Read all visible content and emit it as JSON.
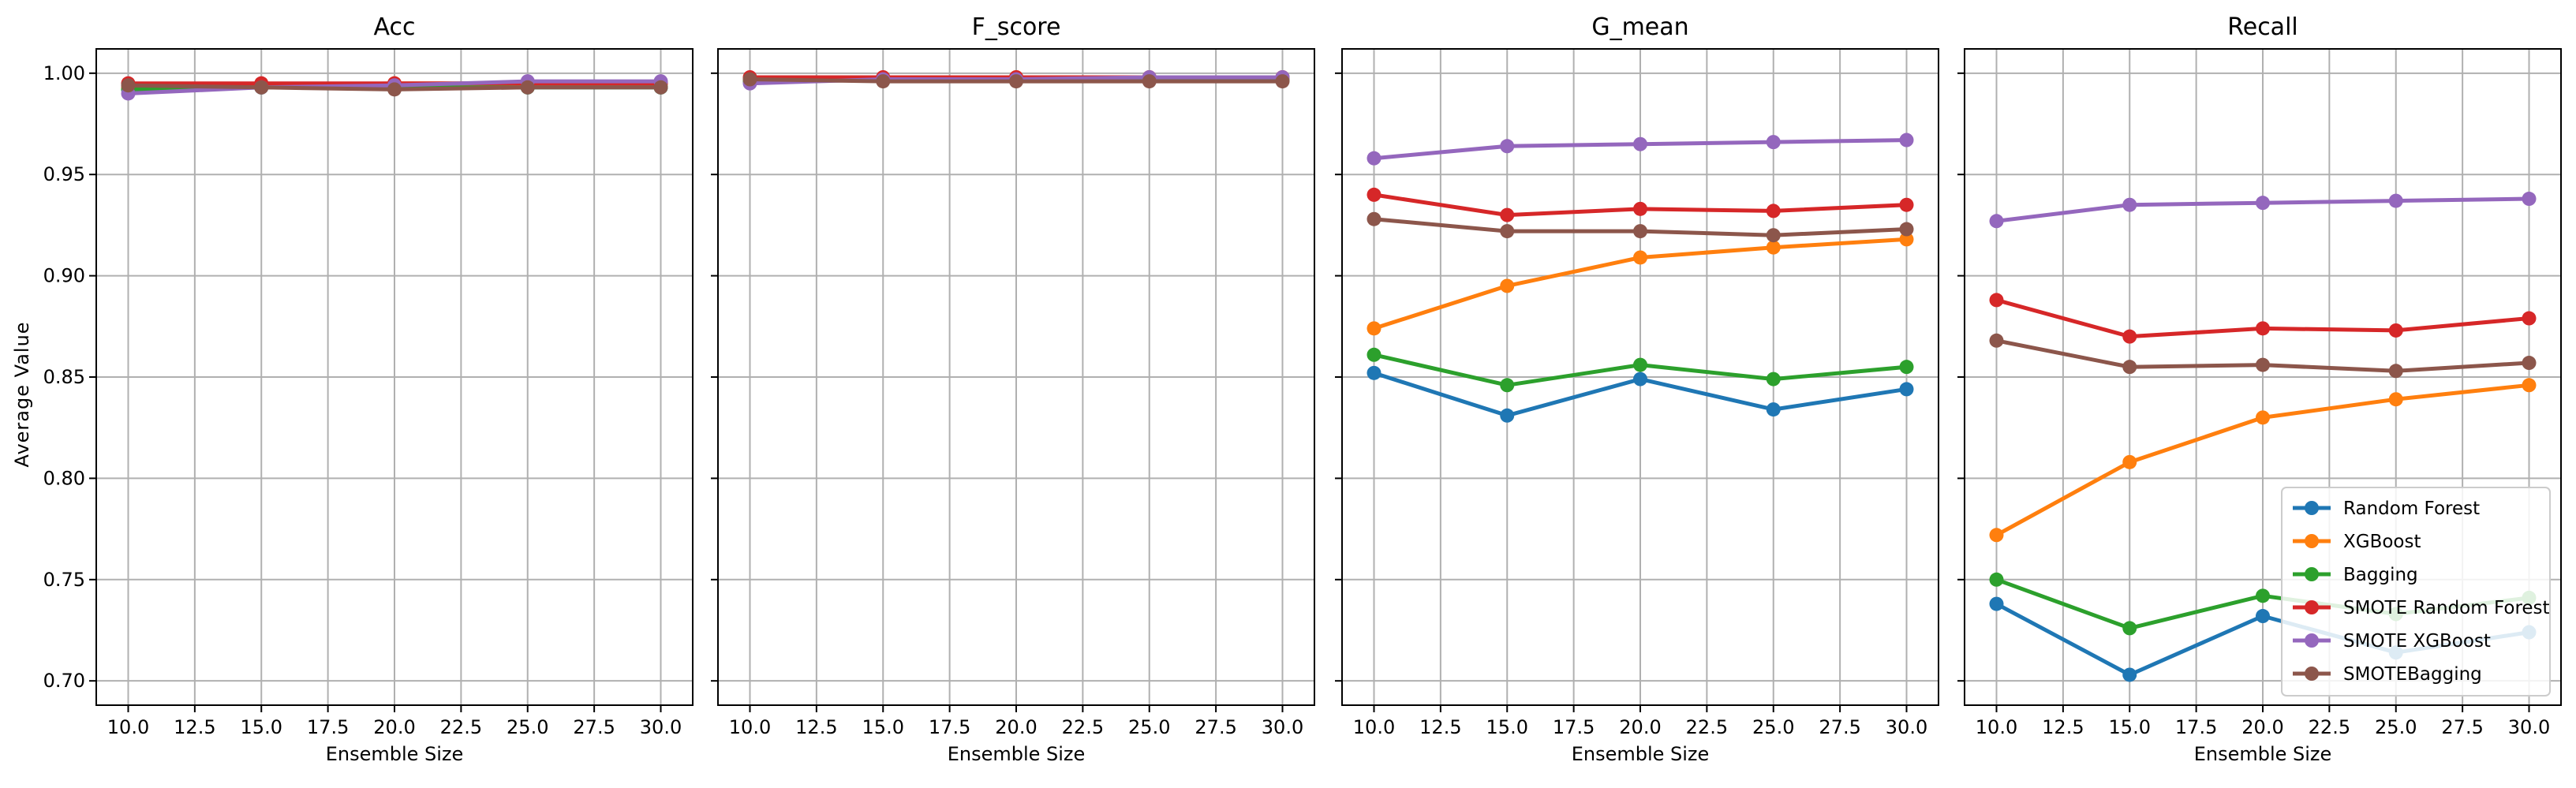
{
  "figure": {
    "ylabel": "Average Value",
    "xlabel": "Ensemble Size"
  },
  "legend": {
    "placement": "lower-right of last panel",
    "entries": [
      "Random Forest",
      "XGBoost",
      "Bagging",
      "SMOTE Random Forest",
      "SMOTE XGBoost",
      "SMOTEBagging"
    ]
  },
  "colors": {
    "Random Forest": "#1f77b4",
    "XGBoost": "#ff7f0e",
    "Bagging": "#2ca02c",
    "SMOTE Random Forest": "#d62728",
    "SMOTE XGBoost": "#9467bd",
    "SMOTEBagging": "#8c564b"
  },
  "chart_data": [
    {
      "type": "line",
      "title": "Acc",
      "xlabel": "Ensemble Size",
      "ylabel": "Average Value",
      "x": [
        10,
        15,
        20,
        25,
        30
      ],
      "xlim": [
        8.8,
        31.2
      ],
      "xticks": [
        "10.0",
        "12.5",
        "15.0",
        "17.5",
        "20.0",
        "22.5",
        "25.0",
        "27.5",
        "30.0"
      ],
      "ylim": [
        0.688,
        1.012
      ],
      "yticks": [
        "0.70",
        "0.75",
        "0.80",
        "0.85",
        "0.90",
        "0.95",
        "1.00"
      ],
      "grid": true,
      "series": [
        {
          "name": "Random Forest",
          "values": [
            0.992,
            0.993,
            0.993,
            0.993,
            0.993
          ]
        },
        {
          "name": "XGBoost",
          "values": [
            0.993,
            0.994,
            0.995,
            0.995,
            0.995
          ]
        },
        {
          "name": "Bagging",
          "values": [
            0.992,
            0.993,
            0.993,
            0.993,
            0.993
          ]
        },
        {
          "name": "SMOTE Random Forest",
          "values": [
            0.995,
            0.995,
            0.995,
            0.995,
            0.995
          ]
        },
        {
          "name": "SMOTE XGBoost",
          "values": [
            0.99,
            0.993,
            0.994,
            0.996,
            0.996
          ]
        },
        {
          "name": "SMOTEBagging",
          "values": [
            0.994,
            0.993,
            0.992,
            0.993,
            0.993
          ]
        }
      ]
    },
    {
      "type": "line",
      "title": "F_score",
      "xlabel": "Ensemble Size",
      "x": [
        10,
        15,
        20,
        25,
        30
      ],
      "xlim": [
        8.8,
        31.2
      ],
      "xticks": [
        "10.0",
        "12.5",
        "15.0",
        "17.5",
        "20.0",
        "22.5",
        "25.0",
        "27.5",
        "30.0"
      ],
      "ylim": [
        0.688,
        1.012
      ],
      "grid": true,
      "series": [
        {
          "name": "Random Forest",
          "values": [
            0.996,
            0.997,
            0.997,
            0.997,
            0.997
          ]
        },
        {
          "name": "XGBoost",
          "values": [
            0.997,
            0.997,
            0.998,
            0.998,
            0.998
          ]
        },
        {
          "name": "Bagging",
          "values": [
            0.996,
            0.997,
            0.997,
            0.997,
            0.997
          ]
        },
        {
          "name": "SMOTE Random Forest",
          "values": [
            0.998,
            0.998,
            0.998,
            0.998,
            0.998
          ]
        },
        {
          "name": "SMOTE XGBoost",
          "values": [
            0.995,
            0.997,
            0.997,
            0.998,
            0.998
          ]
        },
        {
          "name": "SMOTEBagging",
          "values": [
            0.997,
            0.996,
            0.996,
            0.996,
            0.996
          ]
        }
      ]
    },
    {
      "type": "line",
      "title": "G_mean",
      "xlabel": "Ensemble Size",
      "x": [
        10,
        15,
        20,
        25,
        30
      ],
      "xlim": [
        8.8,
        31.2
      ],
      "xticks": [
        "10.0",
        "12.5",
        "15.0",
        "17.5",
        "20.0",
        "22.5",
        "25.0",
        "27.5",
        "30.0"
      ],
      "ylim": [
        0.688,
        1.012
      ],
      "grid": true,
      "series": [
        {
          "name": "Random Forest",
          "values": [
            0.852,
            0.831,
            0.849,
            0.834,
            0.844
          ]
        },
        {
          "name": "XGBoost",
          "values": [
            0.874,
            0.895,
            0.909,
            0.914,
            0.918
          ]
        },
        {
          "name": "Bagging",
          "values": [
            0.861,
            0.846,
            0.856,
            0.849,
            0.855
          ]
        },
        {
          "name": "SMOTE Random Forest",
          "values": [
            0.94,
            0.93,
            0.933,
            0.932,
            0.935
          ]
        },
        {
          "name": "SMOTE XGBoost",
          "values": [
            0.958,
            0.964,
            0.965,
            0.966,
            0.967
          ]
        },
        {
          "name": "SMOTEBagging",
          "values": [
            0.928,
            0.922,
            0.922,
            0.92,
            0.923
          ]
        }
      ]
    },
    {
      "type": "line",
      "title": "Recall",
      "xlabel": "Ensemble Size",
      "x": [
        10,
        15,
        20,
        25,
        30
      ],
      "xlim": [
        8.8,
        31.2
      ],
      "xticks": [
        "10.0",
        "12.5",
        "15.0",
        "17.5",
        "20.0",
        "22.5",
        "25.0",
        "27.5",
        "30.0"
      ],
      "ylim": [
        0.688,
        1.012
      ],
      "grid": true,
      "legend": "lower right",
      "series": [
        {
          "name": "Random Forest",
          "values": [
            0.738,
            0.703,
            0.732,
            0.714,
            0.724
          ]
        },
        {
          "name": "XGBoost",
          "values": [
            0.772,
            0.808,
            0.83,
            0.839,
            0.846
          ]
        },
        {
          "name": "Bagging",
          "values": [
            0.75,
            0.726,
            0.742,
            0.733,
            0.741
          ]
        },
        {
          "name": "SMOTE Random Forest",
          "values": [
            0.888,
            0.87,
            0.874,
            0.873,
            0.879
          ]
        },
        {
          "name": "SMOTE XGBoost",
          "values": [
            0.927,
            0.935,
            0.936,
            0.937,
            0.938
          ]
        },
        {
          "name": "SMOTEBagging",
          "values": [
            0.868,
            0.855,
            0.856,
            0.853,
            0.857
          ]
        }
      ]
    }
  ]
}
